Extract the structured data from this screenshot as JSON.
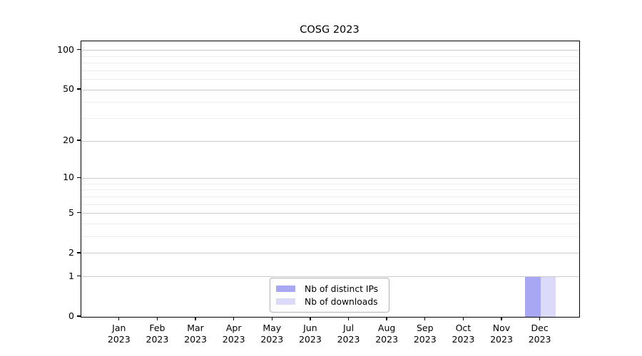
{
  "chart_data": {
    "type": "bar",
    "title": "COSG 2023",
    "categories": [
      {
        "month": "Jan",
        "year": "2023"
      },
      {
        "month": "Feb",
        "year": "2023"
      },
      {
        "month": "Mar",
        "year": "2023"
      },
      {
        "month": "Apr",
        "year": "2023"
      },
      {
        "month": "May",
        "year": "2023"
      },
      {
        "month": "Jun",
        "year": "2023"
      },
      {
        "month": "Jul",
        "year": "2023"
      },
      {
        "month": "Aug",
        "year": "2023"
      },
      {
        "month": "Sep",
        "year": "2023"
      },
      {
        "month": "Oct",
        "year": "2023"
      },
      {
        "month": "Nov",
        "year": "2023"
      },
      {
        "month": "Dec",
        "year": "2023"
      }
    ],
    "series": [
      {
        "name": "Nb of distinct IPs",
        "color": "#a7a7f3",
        "values": [
          0,
          0,
          0,
          0,
          0,
          0,
          0,
          0,
          0,
          0,
          0,
          1
        ]
      },
      {
        "name": "Nb of downloads",
        "color": "#dbdbf9",
        "values": [
          0,
          0,
          0,
          0,
          0,
          0,
          0,
          0,
          0,
          0,
          0,
          1
        ]
      }
    ],
    "y_scale": "log1p",
    "y_major_ticks": [
      0,
      1,
      2,
      5,
      10,
      20,
      50,
      100
    ],
    "y_minor_gridlines": [
      3,
      4,
      6,
      7,
      8,
      9,
      30,
      40,
      60,
      70,
      80,
      90
    ],
    "ylim": [
      0,
      117
    ],
    "xlabel": "",
    "ylabel": "",
    "grid": "horizontal-only",
    "legend_position": "lower center",
    "colors": {
      "major_grid": "#cccccc",
      "minor_grid": "#ededed",
      "spine": "#000000",
      "text": "#000000",
      "background": "#ffffff"
    }
  }
}
